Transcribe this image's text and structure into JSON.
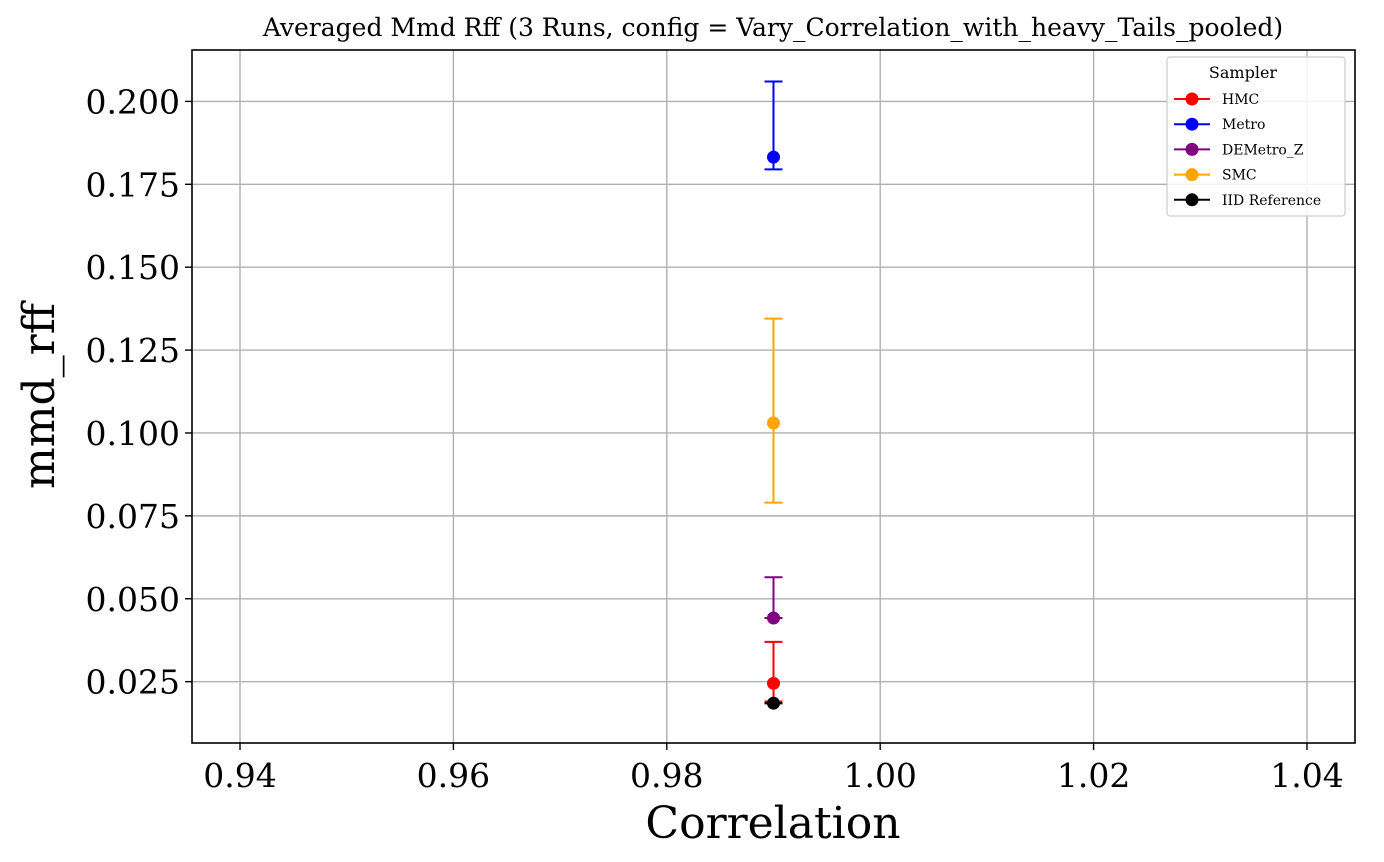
{
  "chart_data": {
    "type": "scatter",
    "title": "Averaged Mmd Rff (3 Runs, config = Vary_Correlation_with_heavy_Tails_pooled)",
    "xlabel": "Correlation",
    "ylabel": "mmd_rff",
    "xlim": [
      0.9355,
      1.0445
    ],
    "ylim": [
      0.0065,
      0.2155
    ],
    "xticks": [
      0.94,
      0.96,
      0.98,
      1.0,
      1.02,
      1.04
    ],
    "xtick_labels": [
      "0.94",
      "0.96",
      "0.98",
      "1.00",
      "1.02",
      "1.04"
    ],
    "yticks": [
      0.025,
      0.05,
      0.075,
      0.1,
      0.125,
      0.15,
      0.175,
      0.2
    ],
    "ytick_labels": [
      "0.025",
      "0.050",
      "0.075",
      "0.100",
      "0.125",
      "0.150",
      "0.175",
      "0.200"
    ],
    "grid": true,
    "legend": {
      "title": "Sampler",
      "position": "top-right"
    },
    "series": [
      {
        "name": "HMC",
        "color": "#ff0000",
        "x": [
          0.99
        ],
        "y": [
          0.0245
        ],
        "err_low": [
          0.019
        ],
        "err_high": [
          0.037
        ]
      },
      {
        "name": "Metro",
        "color": "#0000ff",
        "x": [
          0.99
        ],
        "y": [
          0.1832
        ],
        "err_low": [
          0.1795
        ],
        "err_high": [
          0.206
        ]
      },
      {
        "name": "DEMetro_Z",
        "color": "#800080",
        "x": [
          0.99
        ],
        "y": [
          0.0442
        ],
        "err_low": [
          0.0442
        ],
        "err_high": [
          0.0565
        ]
      },
      {
        "name": "SMC",
        "color": "#ffa500",
        "x": [
          0.99
        ],
        "y": [
          0.103
        ],
        "err_low": [
          0.079
        ],
        "err_high": [
          0.1345
        ]
      },
      {
        "name": "IID Reference",
        "color": "#000000",
        "x": [
          0.99
        ],
        "y": [
          0.0185
        ],
        "err_low": [
          0.0185
        ],
        "err_high": [
          0.0185
        ]
      }
    ]
  }
}
